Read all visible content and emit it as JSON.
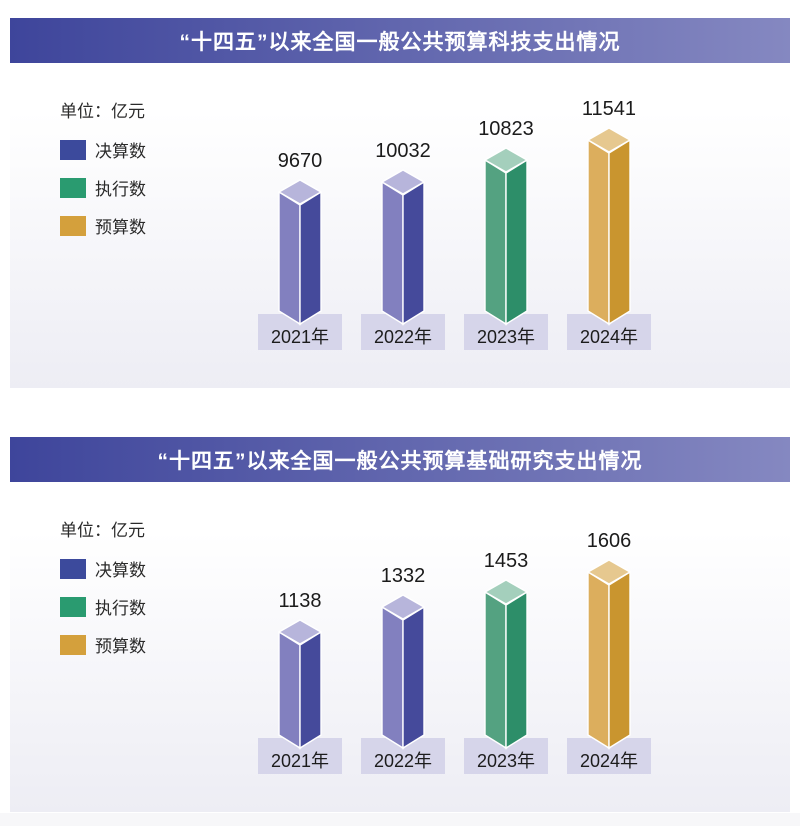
{
  "palette": {
    "header_gradient_start": "#3e459b",
    "header_gradient_end": "#8588c1",
    "panel_bg_top": "#ffffff",
    "panel_bg_bottom": "#ededf4",
    "pedestal_color": "#d6d5ea",
    "text_color": "#1b1b1b",
    "series": {
      "决算数": {
        "swatch": "#3c4a9c",
        "left": "#8280bf",
        "right": "#454a9b",
        "top": "#b7b5db"
      },
      "执行数": {
        "swatch": "#2a9b70",
        "left": "#54a281",
        "right": "#2d8e69",
        "top": "#a4cfbc"
      },
      "预算数": {
        "swatch": "#d4a03c",
        "left": "#dcae5d",
        "right": "#c9952f",
        "top": "#e6c88f"
      }
    }
  },
  "legend": {
    "unit_label": "单位：亿元",
    "items": [
      {
        "label": "决算数"
      },
      {
        "label": "执行数"
      },
      {
        "label": "预算数"
      }
    ]
  },
  "chart_data": [
    {
      "type": "bar",
      "title": "“十四五”以来全国一般公共预算科技支出情况",
      "unit": "亿元",
      "categories": [
        "2021年",
        "2022年",
        "2023年",
        "2024年"
      ],
      "values": [
        9670,
        10032,
        10823,
        11541
      ],
      "series_by_category": [
        "决算数",
        "决算数",
        "执行数",
        "预算数"
      ],
      "legend_entries": [
        "决算数",
        "执行数",
        "预算数"
      ],
      "legend_position": "left",
      "grid": false,
      "style": "3d-columns-with-pedestals"
    },
    {
      "type": "bar",
      "title": "“十四五”以来全国一般公共预算基础研究支出情况",
      "unit": "亿元",
      "categories": [
        "2021年",
        "2022年",
        "2023年",
        "2024年"
      ],
      "values": [
        1138,
        1332,
        1453,
        1606
      ],
      "series_by_category": [
        "决算数",
        "决算数",
        "执行数",
        "预算数"
      ],
      "legend_entries": [
        "决算数",
        "执行数",
        "预算数"
      ],
      "legend_position": "left",
      "grid": false,
      "style": "3d-columns-with-pedestals"
    }
  ]
}
